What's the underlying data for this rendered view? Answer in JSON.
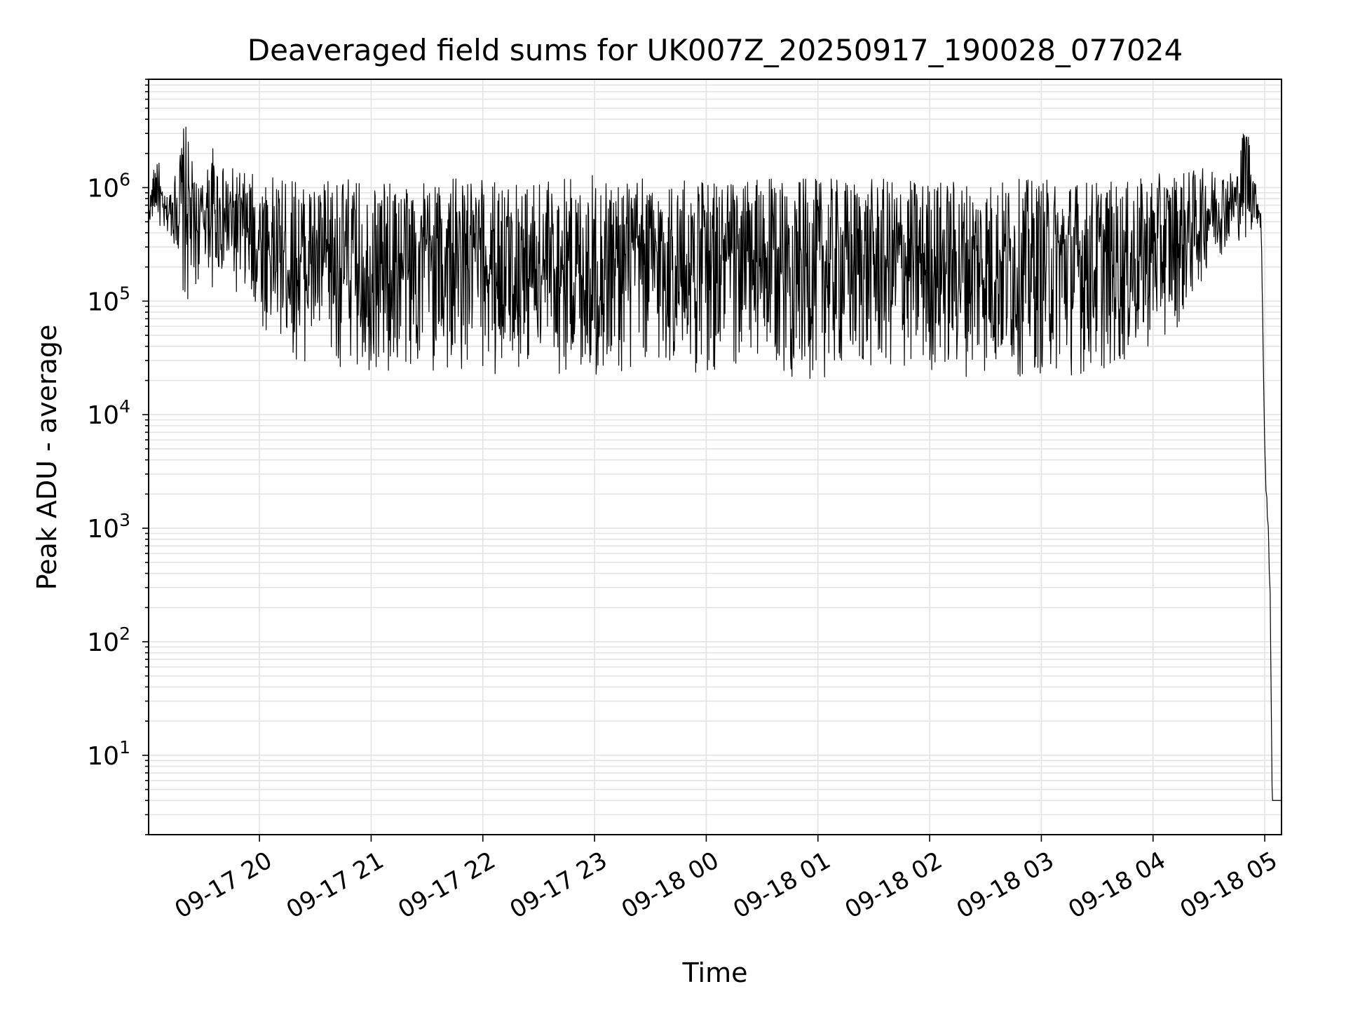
{
  "chart_data": {
    "type": "line",
    "title": "Deaveraged field sums for UK007Z_20250917_190028_077024",
    "xlabel": "Time",
    "ylabel": "Peak ADU - average",
    "yscale": "log",
    "ylim": [
      2,
      9000000
    ],
    "xlim": [
      "2025-09-17 19:00:28",
      "2025-09-18 05:09:00"
    ],
    "grid": true,
    "x_ticks": [
      "09-17 20",
      "09-17 21",
      "09-17 22",
      "09-17 23",
      "09-18 00",
      "09-18 01",
      "09-18 02",
      "09-18 03",
      "09-18 04",
      "09-18 05"
    ],
    "y_ticks": [
      {
        "base": "10",
        "exp": "1"
      },
      {
        "base": "10",
        "exp": "2"
      },
      {
        "base": "10",
        "exp": "3"
      },
      {
        "base": "10",
        "exp": "4"
      },
      {
        "base": "10",
        "exp": "5"
      },
      {
        "base": "10",
        "exp": "6"
      }
    ],
    "series_color": "#000000",
    "x": [
      "2025-09-17 19:00:28",
      "2025-09-17 19:05",
      "2025-09-17 19:08",
      "2025-09-17 19:10",
      "2025-09-17 19:15",
      "2025-09-17 19:20",
      "2025-09-17 19:25",
      "2025-09-17 19:30",
      "2025-09-17 19:35",
      "2025-09-17 19:40",
      "2025-09-17 19:45",
      "2025-09-17 19:50",
      "2025-09-17 20:00",
      "2025-09-17 20:10",
      "2025-09-17 20:20",
      "2025-09-17 20:30",
      "2025-09-17 20:45",
      "2025-09-17 21:00",
      "2025-09-17 21:30",
      "2025-09-17 22:00",
      "2025-09-17 22:30",
      "2025-09-17 23:00",
      "2025-09-17 23:30",
      "2025-09-18 00:00",
      "2025-09-18 00:30",
      "2025-09-18 01:00",
      "2025-09-18 01:30",
      "2025-09-18 02:00",
      "2025-09-18 02:30",
      "2025-09-18 03:00",
      "2025-09-18 03:30",
      "2025-09-18 03:45",
      "2025-09-18 04:00",
      "2025-09-18 04:15",
      "2025-09-18 04:30",
      "2025-09-18 04:45",
      "2025-09-18 04:50",
      "2025-09-18 04:55",
      "2025-09-18 04:58",
      "2025-09-18 05:00",
      "2025-09-18 05:01",
      "2025-09-18 05:02",
      "2025-09-18 05:03",
      "2025-09-18 05:04",
      "2025-09-18 05:09"
    ],
    "y_high": [
      700000,
      2300000,
      900000,
      800000,
      1400000,
      4000000,
      1300000,
      1100000,
      2300000,
      1500000,
      1500000,
      1400000,
      1300000,
      1200000,
      1200000,
      1100000,
      1200000,
      1100000,
      1200000,
      1200000,
      1200000,
      1300000,
      1200000,
      1200000,
      1200000,
      1200000,
      1200000,
      1200000,
      1200000,
      1200000,
      1200000,
      1100000,
      1300000,
      1400000,
      1500000,
      1400000,
      5000000,
      1100000,
      700000,
      5000,
      2500,
      1000,
      250,
      4,
      4
    ],
    "y_low": [
      500000,
      500000,
      350000,
      400000,
      300000,
      75000,
      100000,
      250000,
      120000,
      150000,
      110000,
      100000,
      60000,
      40000,
      30000,
      28000,
      25000,
      22000,
      22000,
      22000,
      23000,
      18000,
      23000,
      22000,
      22000,
      20000,
      22000,
      22000,
      21000,
      21000,
      22000,
      25000,
      40000,
      60000,
      200000,
      350000,
      300000,
      500000,
      400000,
      5000,
      1200,
      700,
      150,
      4,
      4
    ]
  }
}
